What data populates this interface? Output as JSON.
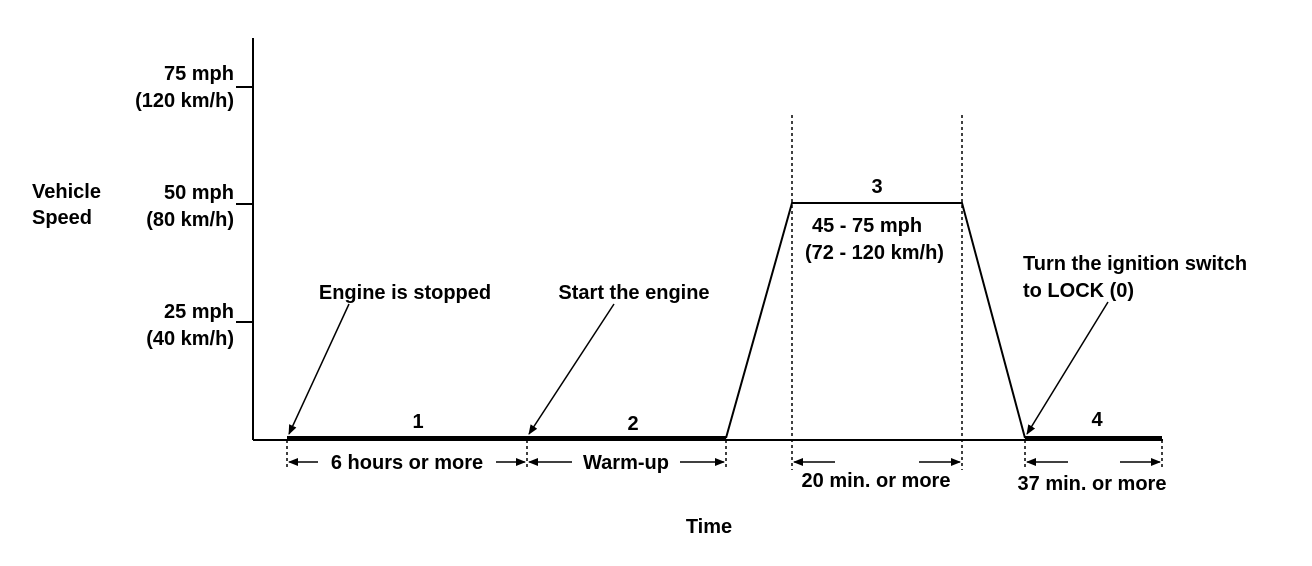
{
  "y_axis": {
    "title_line1": "Vehicle",
    "title_line2": "Speed",
    "ticks": [
      {
        "line1": "75 mph",
        "line2": "(120 km/h)"
      },
      {
        "line1": "50 mph",
        "line2": "(80 km/h)"
      },
      {
        "line1": "25 mph",
        "line2": "(40 km/h)"
      }
    ]
  },
  "x_axis": {
    "title": "Time"
  },
  "phases": [
    {
      "number": "1",
      "duration": "6 hours or more"
    },
    {
      "number": "2",
      "duration": "Warm-up"
    },
    {
      "number": "3",
      "duration": "20 min. or more",
      "speed_line1": "45 - 75 mph",
      "speed_line2": "(72 - 120 km/h)"
    },
    {
      "number": "4",
      "duration": "37 min. or more"
    }
  ],
  "callouts": {
    "engine_stopped": "Engine is stopped",
    "start_engine": "Start the engine",
    "ignition_line1": "Turn the ignition switch",
    "ignition_line2": "to LOCK (0)"
  }
}
